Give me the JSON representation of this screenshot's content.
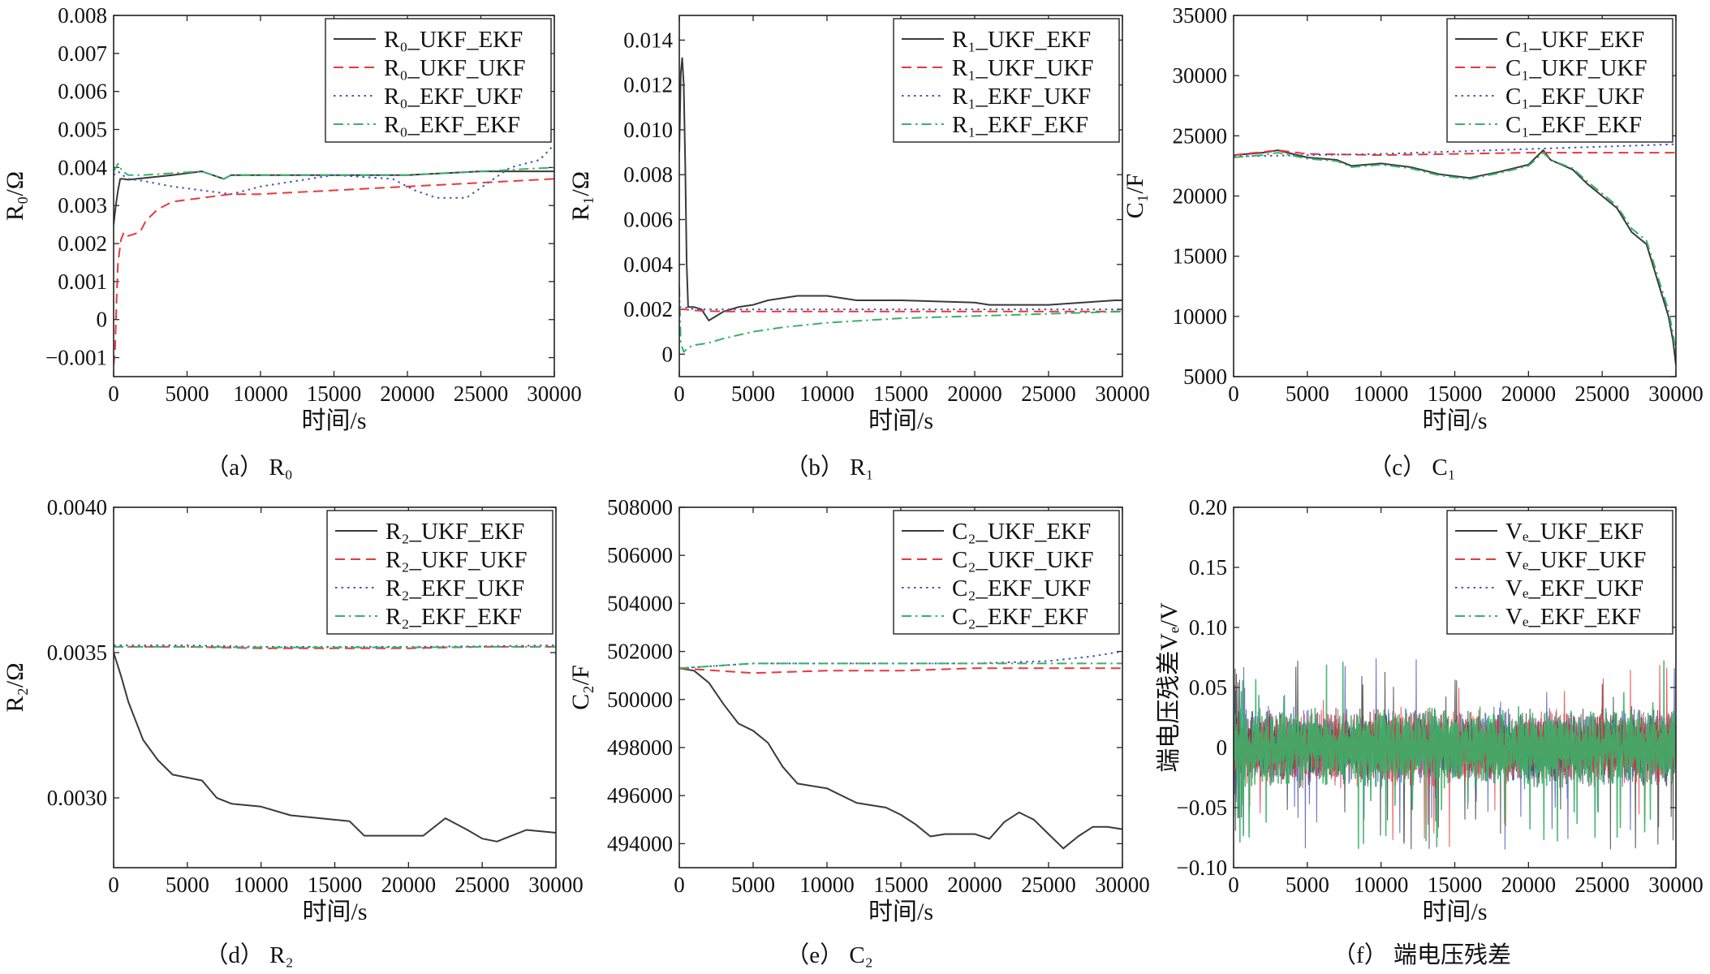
{
  "chart_data": [
    {
      "id": "a",
      "type": "line",
      "caption": "（a） R₀",
      "ylabel": "R₀/Ω",
      "xlabel": "时间/s",
      "xlim": [
        0,
        30000
      ],
      "ylim": [
        -0.0015,
        0.008
      ],
      "xticks": [
        0,
        5000,
        10000,
        15000,
        20000,
        25000,
        30000
      ],
      "xtick_labels": [
        "0",
        "5000",
        "10000",
        "15000",
        "20000",
        "25000",
        "30000"
      ],
      "yticks": [
        -0.001,
        0,
        0.001,
        0.002,
        0.003,
        0.004,
        0.005,
        0.006,
        0.007,
        0.008
      ],
      "ytick_labels": [
        "−0.001",
        "0",
        "0.001",
        "0.002",
        "0.003",
        "0.004",
        "0.005",
        "0.006",
        "0.007",
        "0.008"
      ],
      "legend_position": "top-right",
      "series": [
        {
          "name": "R₀_UKF_EKF",
          "style": "solid",
          "color": "#3a3a3a",
          "x": [
            0,
            150,
            300,
            450,
            600,
            1000,
            2000,
            4000,
            6000,
            7500,
            8000,
            10000,
            15000,
            20000,
            25000,
            29500,
            30000
          ],
          "y": [
            0.0025,
            0.003,
            0.0034,
            0.0037,
            0.0037,
            0.00368,
            0.00372,
            0.0038,
            0.0039,
            0.0037,
            0.0038,
            0.0038,
            0.0038,
            0.0038,
            0.0039,
            0.0039,
            0.0039
          ]
        },
        {
          "name": "R₀_UKF_UKF",
          "style": "dashed",
          "color": "#e8383d",
          "x": [
            0,
            100,
            200,
            300,
            500,
            700,
            1000,
            1800,
            2200,
            3000,
            4000,
            6000,
            8000,
            10000,
            15000,
            20000,
            25000,
            30000
          ],
          "y": [
            -0.0012,
            -0.0008,
            0.0005,
            0.0015,
            0.0021,
            0.0023,
            0.0022,
            0.0023,
            0.0026,
            0.0029,
            0.0031,
            0.0032,
            0.0033,
            0.0033,
            0.0034,
            0.0035,
            0.0036,
            0.0037
          ]
        },
        {
          "name": "R₀_EKF_UKF",
          "style": "dotted",
          "color": "#4a55b8",
          "x": [
            0,
            300,
            600,
            1000,
            2000,
            4000,
            6000,
            8000,
            10000,
            15000,
            19000,
            20500,
            22000,
            24000,
            25500,
            27000,
            29000,
            30000
          ],
          "y": [
            0.0038,
            0.0039,
            0.0038,
            0.0037,
            0.00365,
            0.0035,
            0.0034,
            0.0033,
            0.0035,
            0.0038,
            0.0037,
            0.0034,
            0.0032,
            0.0032,
            0.0036,
            0.004,
            0.0042,
            0.0046
          ]
        },
        {
          "name": "R₀_EKF_EKF",
          "style": "dashdot",
          "color": "#3bb06a",
          "x": [
            0,
            300,
            600,
            1000,
            2000,
            4000,
            6000,
            7500,
            8000,
            10000,
            15000,
            20000,
            25000,
            30000
          ],
          "y": [
            0.0039,
            0.0041,
            0.0039,
            0.0038,
            0.0038,
            0.00385,
            0.0039,
            0.0037,
            0.0038,
            0.0038,
            0.0038,
            0.0038,
            0.0039,
            0.004
          ]
        }
      ]
    },
    {
      "id": "b",
      "type": "line",
      "caption": "（b） R₁",
      "ylabel": "R₁/Ω",
      "xlabel": "时间/s",
      "xlim": [
        0,
        30000
      ],
      "ylim": [
        -0.001,
        0.0151
      ],
      "xticks": [
        0,
        5000,
        10000,
        15000,
        20000,
        25000,
        30000
      ],
      "xtick_labels": [
        "0",
        "5000",
        "10000",
        "15000",
        "20000",
        "25000",
        "30000"
      ],
      "yticks": [
        0,
        0.002,
        0.004,
        0.006,
        0.008,
        0.01,
        0.012,
        0.014
      ],
      "ytick_labels": [
        "0",
        "0.002",
        "0.004",
        "0.006",
        "0.008",
        "0.010",
        "0.012",
        "0.014"
      ],
      "legend_position": "top-right",
      "series": [
        {
          "name": "R₁_UKF_EKF",
          "style": "solid",
          "color": "#3a3a3a",
          "x": [
            0,
            100,
            200,
            300,
            400,
            500,
            600,
            1000,
            1500,
            2000,
            2500,
            3000,
            4000,
            5000,
            6000,
            7000,
            8000,
            10000,
            11000,
            12000,
            15000,
            20000,
            21000,
            25000,
            29500,
            30000
          ],
          "y": [
            0.009,
            0.0125,
            0.0132,
            0.012,
            0.0085,
            0.004,
            0.0021,
            0.0021,
            0.002,
            0.0015,
            0.0017,
            0.0019,
            0.0021,
            0.0022,
            0.0024,
            0.0025,
            0.0026,
            0.0026,
            0.0025,
            0.0024,
            0.0024,
            0.0023,
            0.0022,
            0.0022,
            0.0024,
            0.0024
          ]
        },
        {
          "name": "R₁_UKF_UKF",
          "style": "dashed",
          "color": "#e8383d",
          "x": [
            0,
            300,
            1000,
            3000,
            10000,
            20000,
            30000
          ],
          "y": [
            0.002,
            0.002,
            0.00195,
            0.0019,
            0.0019,
            0.0019,
            0.0019
          ]
        },
        {
          "name": "R₁_EKF_UKF",
          "style": "dotted",
          "color": "#4a55b8",
          "x": [
            0,
            300,
            1000,
            3000,
            10000,
            20000,
            30000
          ],
          "y": [
            0.0021,
            0.0021,
            0.002,
            0.002,
            0.002,
            0.002,
            0.002
          ]
        },
        {
          "name": "R₁_EKF_EKF",
          "style": "dashdot",
          "color": "#3bb06a",
          "x": [
            0,
            100,
            300,
            600,
            1000,
            2000,
            3000,
            5000,
            7000,
            10000,
            15000,
            20000,
            25000,
            30000
          ],
          "y": [
            0.003,
            0.0005,
            0.0001,
            0.0003,
            0.0004,
            0.0005,
            0.0007,
            0.001,
            0.0012,
            0.0014,
            0.0016,
            0.0017,
            0.0018,
            0.0019
          ]
        }
      ]
    },
    {
      "id": "c",
      "type": "line",
      "caption": "（c） C₁",
      "ylabel": "C₁/F",
      "xlabel": "时间/s",
      "xlim": [
        0,
        30000
      ],
      "ylim": [
        5000,
        35000
      ],
      "xticks": [
        0,
        5000,
        10000,
        15000,
        20000,
        25000,
        30000
      ],
      "xtick_labels": [
        "0",
        "5000",
        "10000",
        "15000",
        "20000",
        "25000",
        "30000"
      ],
      "yticks": [
        5000,
        10000,
        15000,
        20000,
        25000,
        30000,
        35000
      ],
      "ytick_labels": [
        "5000",
        "10000",
        "15000",
        "20000",
        "25000",
        "30000",
        "35000"
      ],
      "legend_position": "top-right",
      "series": [
        {
          "name": "C₁_UKF_EKF",
          "style": "solid",
          "color": "#3a3a3a",
          "x": [
            0,
            2000,
            3000,
            5000,
            7000,
            8000,
            10000,
            12000,
            14000,
            16000,
            18000,
            20000,
            21000,
            21500,
            23000,
            24000,
            25000,
            26000,
            27000,
            28000,
            28500,
            29000,
            29500,
            29800,
            30000
          ],
          "y": [
            23400,
            23600,
            23800,
            23200,
            23000,
            22500,
            22700,
            22400,
            21800,
            21500,
            22000,
            22600,
            23800,
            23000,
            22200,
            21000,
            20000,
            19000,
            17000,
            16000,
            14000,
            12000,
            10000,
            8000,
            6000
          ]
        },
        {
          "name": "C₁_UKF_UKF",
          "style": "dashed",
          "color": "#e8383d",
          "x": [
            0,
            3000,
            5000,
            10000,
            15000,
            20000,
            25000,
            30000
          ],
          "y": [
            23400,
            23800,
            23500,
            23400,
            23500,
            23600,
            23600,
            23600
          ]
        },
        {
          "name": "C₁_EKF_UKF",
          "style": "dotted",
          "color": "#4a55b8",
          "x": [
            0,
            5000,
            10000,
            15000,
            20000,
            25000,
            30000
          ],
          "y": [
            23300,
            23400,
            23500,
            23700,
            23900,
            24100,
            24300
          ]
        },
        {
          "name": "C₁_EKF_EKF",
          "style": "dashdot",
          "color": "#3bb06a",
          "x": [
            0,
            2000,
            3000,
            5000,
            7000,
            8000,
            10000,
            12000,
            14000,
            16000,
            18000,
            20000,
            21000,
            21500,
            23000,
            24000,
            25000,
            26000,
            27000,
            28000,
            28500,
            29000,
            29500,
            29800,
            30000
          ],
          "y": [
            23200,
            23400,
            23600,
            23100,
            22900,
            22400,
            22600,
            22300,
            21700,
            21400,
            21900,
            22500,
            23600,
            23000,
            22300,
            21200,
            20200,
            19200,
            17300,
            16300,
            14400,
            12400,
            10500,
            8600,
            7000
          ]
        }
      ]
    },
    {
      "id": "d",
      "type": "line",
      "caption": "（d） R₂",
      "ylabel": "R₂/Ω",
      "xlabel": "时间/s",
      "xlim": [
        0,
        30000
      ],
      "ylim": [
        0.00276,
        0.004
      ],
      "xticks": [
        0,
        5000,
        10000,
        15000,
        20000,
        25000,
        30000
      ],
      "xtick_labels": [
        "0",
        "5000",
        "10000",
        "15000",
        "20000",
        "25000",
        "30000"
      ],
      "yticks": [
        0.003,
        0.0035,
        0.004
      ],
      "ytick_labels": [
        "0.0030",
        "0.0035",
        "0.0040"
      ],
      "legend_position": "top-right",
      "series": [
        {
          "name": "R₂_UKF_EKF",
          "style": "solid",
          "color": "#3a3a3a",
          "x": [
            0,
            500,
            1000,
            2000,
            3000,
            4000,
            5000,
            6000,
            7000,
            8000,
            10000,
            12000,
            14000,
            16000,
            17000,
            18000,
            20000,
            21000,
            22500,
            24000,
            25000,
            26000,
            27000,
            28000,
            30000
          ],
          "y": [
            0.0035,
            0.00342,
            0.00333,
            0.0032,
            0.00313,
            0.00308,
            0.00307,
            0.00306,
            0.003,
            0.00298,
            0.00297,
            0.00294,
            0.00293,
            0.00292,
            0.00287,
            0.00287,
            0.00287,
            0.00287,
            0.00293,
            0.00289,
            0.00286,
            0.00285,
            0.00287,
            0.00289,
            0.00288
          ]
        },
        {
          "name": "R₂_UKF_UKF",
          "style": "dashed",
          "color": "#e8383d",
          "x": [
            0,
            5000,
            10000,
            15000,
            20000,
            25000,
            30000
          ],
          "y": [
            0.00352,
            0.00352,
            0.003515,
            0.003515,
            0.003515,
            0.00352,
            0.00352
          ]
        },
        {
          "name": "R₂_EKF_UKF",
          "style": "dotted",
          "color": "#4a55b8",
          "x": [
            0,
            5000,
            10000,
            15000,
            20000,
            25000,
            30000
          ],
          "y": [
            0.003525,
            0.003525,
            0.00352,
            0.00352,
            0.00352,
            0.003522,
            0.003525
          ]
        },
        {
          "name": "R₂_EKF_EKF",
          "style": "dashdot",
          "color": "#3bb06a",
          "x": [
            0,
            5000,
            10000,
            15000,
            20000,
            25000,
            30000
          ],
          "y": [
            0.00352,
            0.00352,
            0.003518,
            0.003518,
            0.003518,
            0.00352,
            0.00352
          ]
        }
      ]
    },
    {
      "id": "e",
      "type": "line",
      "caption": "（e） C₂",
      "ylabel": "C₂/F",
      "xlabel": "时间/s",
      "xlim": [
        0,
        30000
      ],
      "ylim": [
        493000,
        508000
      ],
      "xticks": [
        0,
        5000,
        10000,
        15000,
        20000,
        25000,
        30000
      ],
      "xtick_labels": [
        "0",
        "5000",
        "10000",
        "15000",
        "20000",
        "25000",
        "30000"
      ],
      "yticks": [
        494000,
        496000,
        498000,
        500000,
        502000,
        504000,
        506000,
        508000
      ],
      "ytick_labels": [
        "494000",
        "496000",
        "498000",
        "500000",
        "502000",
        "504000",
        "506000",
        "508000"
      ],
      "legend_position": "top-right",
      "series": [
        {
          "name": "C₂_UKF_EKF",
          "style": "solid",
          "color": "#3a3a3a",
          "x": [
            0,
            1000,
            2000,
            3000,
            4000,
            5000,
            6000,
            7000,
            8000,
            10000,
            12000,
            14000,
            15000,
            16000,
            17000,
            18000,
            20000,
            21000,
            22000,
            23000,
            24000,
            25000,
            26000,
            27000,
            28000,
            29000,
            30000
          ],
          "y": [
            501300,
            501200,
            500700,
            499800,
            499000,
            498700,
            498200,
            497200,
            496500,
            496300,
            495700,
            495500,
            495200,
            494800,
            494300,
            494400,
            494400,
            494200,
            494900,
            495300,
            495000,
            494400,
            493800,
            494300,
            494700,
            494700,
            494600
          ]
        },
        {
          "name": "C₂_UKF_UKF",
          "style": "dashed",
          "color": "#e8383d",
          "x": [
            0,
            5000,
            10000,
            15000,
            20000,
            25000,
            30000
          ],
          "y": [
            501300,
            501100,
            501200,
            501200,
            501300,
            501300,
            501300
          ]
        },
        {
          "name": "C₂_EKF_UKF",
          "style": "dotted",
          "color": "#4a55b8",
          "x": [
            0,
            5000,
            10000,
            15000,
            20000,
            25000,
            28000,
            30000
          ],
          "y": [
            501300,
            501500,
            501500,
            501500,
            501500,
            501600,
            501800,
            502000
          ]
        },
        {
          "name": "C₂_EKF_EKF",
          "style": "dashdot",
          "color": "#3bb06a",
          "x": [
            0,
            5000,
            10000,
            15000,
            20000,
            25000,
            30000
          ],
          "y": [
            501300,
            501500,
            501500,
            501500,
            501500,
            501500,
            501500
          ]
        }
      ]
    },
    {
      "id": "f",
      "type": "line",
      "caption": "（f） 端电压残差",
      "ylabel": "端电压残差Vₑ/V",
      "xlabel": "时间/s",
      "xlim": [
        0,
        30000
      ],
      "ylim": [
        -0.1,
        0.2
      ],
      "xticks": [
        0,
        5000,
        10000,
        15000,
        20000,
        25000,
        30000
      ],
      "xtick_labels": [
        "0",
        "5000",
        "10000",
        "15000",
        "20000",
        "25000",
        "30000"
      ],
      "yticks": [
        -0.1,
        -0.05,
        0,
        0.05,
        0.1,
        0.15,
        0.2
      ],
      "ytick_labels": [
        "−0.10",
        "−0.05",
        "0",
        "0.05",
        "0.10",
        "0.15",
        "0.20"
      ],
      "legend_position": "top-right",
      "noise_band": {
        "center": 0.0,
        "amplitude": 0.035,
        "spike_min": -0.085,
        "spike_max": 0.075
      },
      "series": [
        {
          "name": "Vₑ_UKF_EKF",
          "style": "solid",
          "color": "#3a3a3a"
        },
        {
          "name": "Vₑ_UKF_UKF",
          "style": "dashed",
          "color": "#e8383d"
        },
        {
          "name": "Vₑ_EKF_UKF",
          "style": "dotted",
          "color": "#4a55b8"
        },
        {
          "name": "Vₑ_EKF_EKF",
          "style": "dashdot",
          "color": "#3bb06a"
        }
      ]
    }
  ]
}
